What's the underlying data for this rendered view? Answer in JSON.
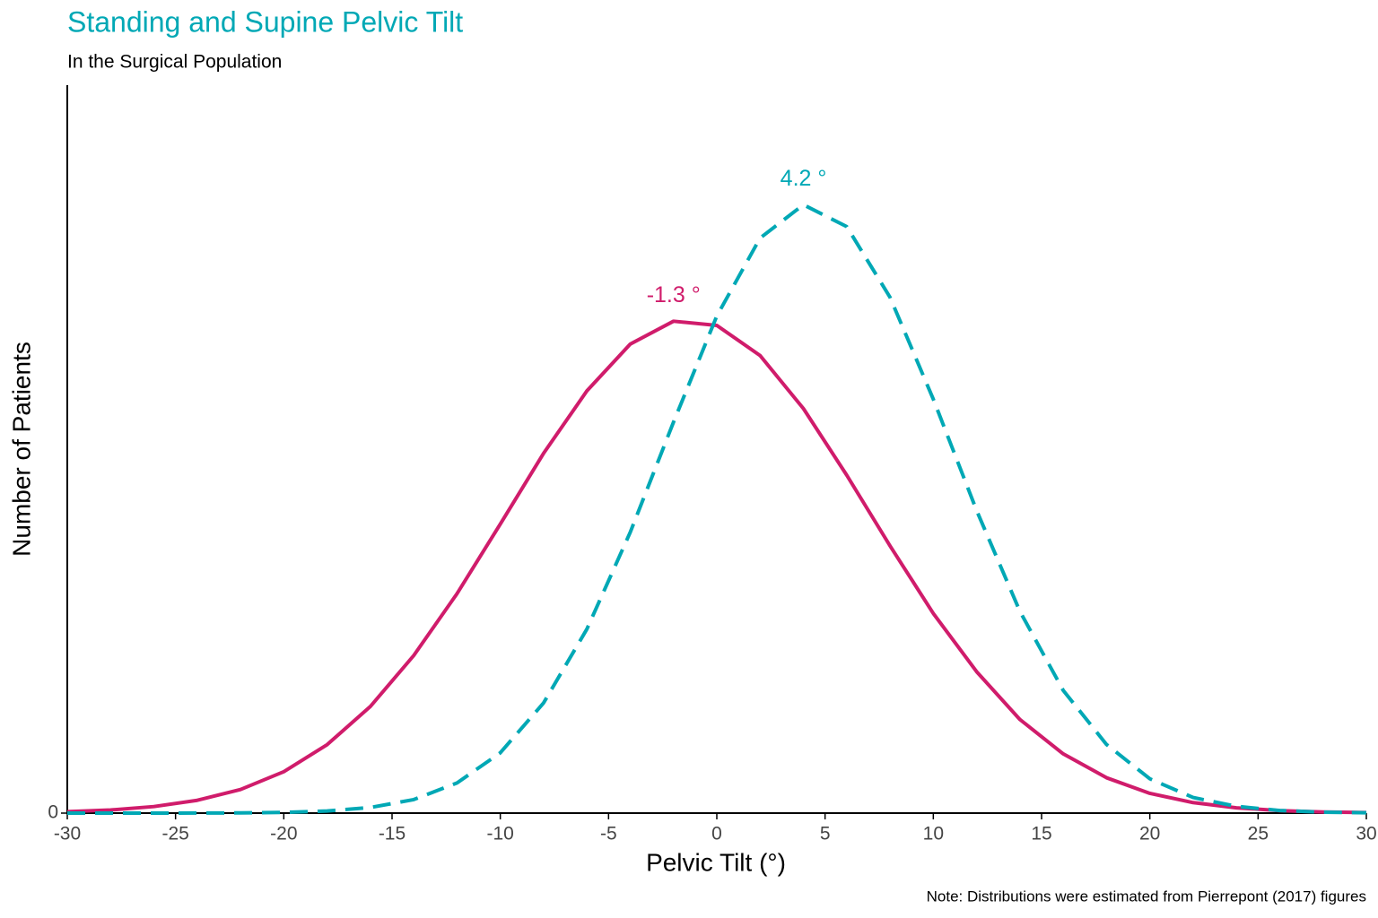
{
  "chart_data": {
    "type": "line",
    "title": "Standing and Supine Pelvic Tilt",
    "subtitle": "In the Surgical Population",
    "x_label": "Pelvic Tilt (°)",
    "y_label": "Number of Patients",
    "note": "Note: Distributions were estimated from Pierrepont (2017) figures",
    "x": [
      -30,
      -28,
      -26,
      -24,
      -22,
      -20,
      -18,
      -16,
      -14,
      -12,
      -10,
      -8,
      -6,
      -4,
      -2,
      0,
      2,
      4,
      6,
      8,
      10,
      12,
      14,
      16,
      18,
      20,
      22,
      24,
      26,
      28,
      30
    ],
    "series": [
      {
        "color": "#d01c6b",
        "dash": false,
        "label": "-1.3 °",
        "values": [
          0.00014,
          0.0003,
          0.00063,
          0.00123,
          0.00227,
          0.00398,
          0.00658,
          0.01026,
          0.01515,
          0.0211,
          0.0278,
          0.0346,
          0.0406,
          0.0451,
          0.0473,
          0.0469,
          0.044,
          0.0389,
          0.0325,
          0.0257,
          0.0192,
          0.0136,
          0.009,
          0.0057,
          0.0034,
          0.0019,
          0.00101,
          0.00051,
          0.00024,
          0.00011,
          5e-05
        ]
      },
      {
        "color": "#00a8b5",
        "dash": true,
        "label": "4.2 °",
        "values": [
          0,
          0,
          0,
          6e-06,
          2e-05,
          7e-05,
          0.0002,
          0.00054,
          0.0013,
          0.0029,
          0.0058,
          0.0106,
          0.0177,
          0.027,
          0.0376,
          0.0478,
          0.0553,
          0.0585,
          0.0564,
          0.0496,
          0.0398,
          0.0291,
          0.0194,
          0.0118,
          0.0066,
          0.0033,
          0.0015,
          0.00065,
          0.00025,
          9e-05,
          3e-05
        ]
      }
    ],
    "xlim": [
      -30,
      30
    ],
    "xticks": [
      -30,
      -25,
      -20,
      -15,
      -10,
      -5,
      0,
      5,
      10,
      15,
      20,
      25,
      30
    ],
    "ylim": [
      0,
      0.07
    ],
    "yticks": [
      0
    ],
    "title_color": "#00a8b5",
    "grid": false
  }
}
